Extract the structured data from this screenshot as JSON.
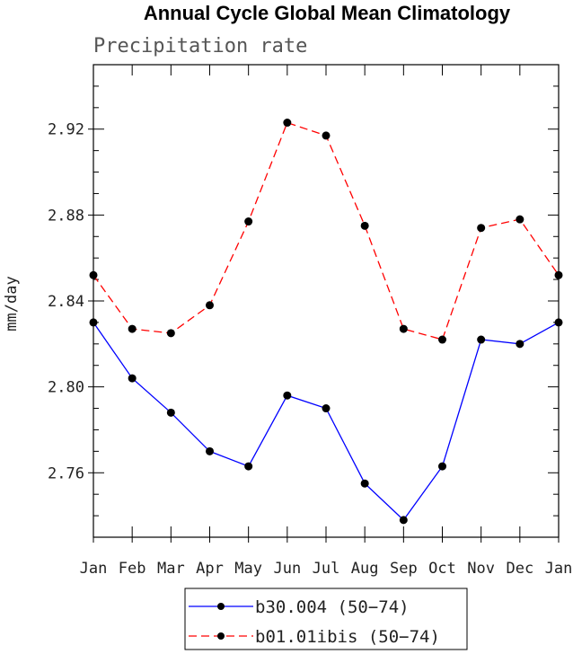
{
  "chart_data": {
    "type": "line",
    "title": "Annual Cycle Global Mean Climatology",
    "subtitle": "Precipitation rate",
    "xlabel": "",
    "ylabel": "mm/day",
    "categories": [
      "Jan",
      "Feb",
      "Mar",
      "Apr",
      "May",
      "Jun",
      "Jul",
      "Aug",
      "Sep",
      "Oct",
      "Nov",
      "Dec",
      "Jan"
    ],
    "ylim": [
      2.73,
      2.95
    ],
    "yticks": [
      "2.76",
      "2.80",
      "2.84",
      "2.88",
      "2.92"
    ],
    "legend_position": "bottom",
    "series": [
      {
        "name": "b30.004 (50−74)",
        "color": "#0000ff",
        "dash": "solid",
        "values": [
          2.83,
          2.804,
          2.788,
          2.77,
          2.763,
          2.796,
          2.79,
          2.755,
          2.738,
          2.763,
          2.822,
          2.82,
          2.83
        ]
      },
      {
        "name": "b01.01ibis (50−74)",
        "color": "#ff0000",
        "dash": "dashed",
        "values": [
          2.852,
          2.827,
          2.825,
          2.838,
          2.877,
          2.923,
          2.917,
          2.875,
          2.827,
          2.822,
          2.874,
          2.878,
          2.852
        ]
      }
    ]
  }
}
